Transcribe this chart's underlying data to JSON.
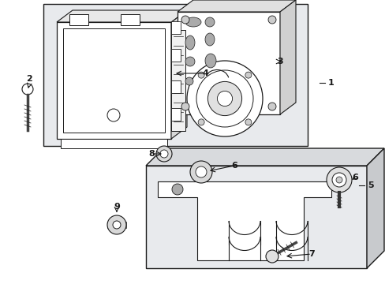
{
  "bg_color": "#ffffff",
  "lc": "#1a1a1a",
  "gray_bg": "#e8e8e8",
  "fig_width": 4.89,
  "fig_height": 3.6,
  "dpi": 100
}
